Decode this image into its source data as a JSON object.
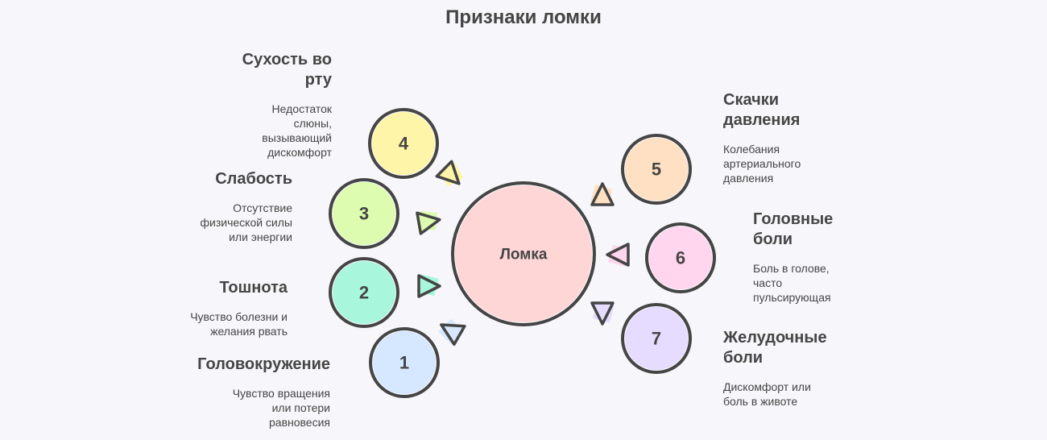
{
  "title": "Признаки ломки",
  "center": {
    "label": "Ломка",
    "color": "#ffd6d6"
  },
  "nodes": [
    {
      "num": "1",
      "title": "Головокружение",
      "desc": "Чувство вращения или потери равновесия",
      "color": "#d6e8ff"
    },
    {
      "num": "2",
      "title": "Тошнота",
      "desc": "Чувство болезни и желания рвать",
      "color": "#a8f7dd"
    },
    {
      "num": "3",
      "title": "Слабость",
      "desc": "Отсутствие физической силы или энергии",
      "color": "#ddfcb0"
    },
    {
      "num": "4",
      "title": "Сухость во рту",
      "desc": "Недостаток слюны, вызывающий дискомфорт",
      "color": "#fff5a8"
    },
    {
      "num": "5",
      "title": "Скачки давления",
      "desc": "Колебания артериального давления",
      "color": "#ffe0c2"
    },
    {
      "num": "6",
      "title": "Головные боли",
      "desc": "Боль в голове, часто пульсирующая",
      "color": "#ffd6ee"
    },
    {
      "num": "7",
      "title": "Желудочные боли",
      "desc": "Дискомфорт или боль в животе",
      "color": "#e6dcff"
    }
  ]
}
